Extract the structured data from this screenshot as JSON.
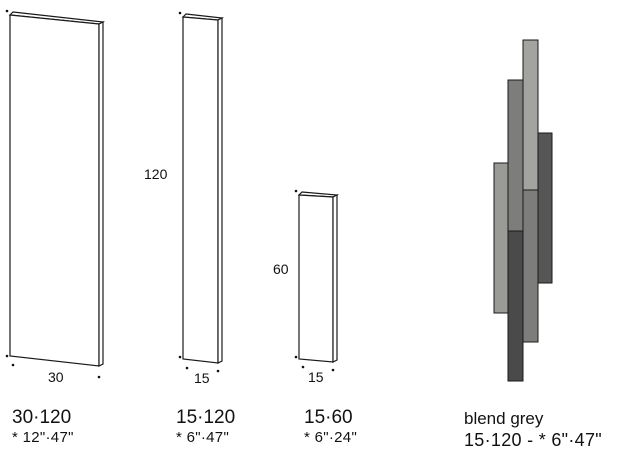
{
  "panels": [
    {
      "label": "30·120",
      "imperial": "* 12\"·47\"",
      "height_label": "",
      "width_label": "30"
    },
    {
      "label": "15·120",
      "imperial": "* 6\"·47\"",
      "height_label": "120",
      "width_label": "15"
    },
    {
      "label": "15·60",
      "imperial": "* 6\"·24\"",
      "height_label": "60",
      "width_label": "15"
    }
  ],
  "blend": {
    "label": "blend grey",
    "dims": "15·120 - * 6\"·47\"",
    "colors": {
      "light": "#9a9a96",
      "mid": "#7d7d7b",
      "dark": "#565656",
      "darker": "#4a4a4a",
      "lightest": "#a3a3a0"
    }
  },
  "stroke_color": "#1a1a1a"
}
